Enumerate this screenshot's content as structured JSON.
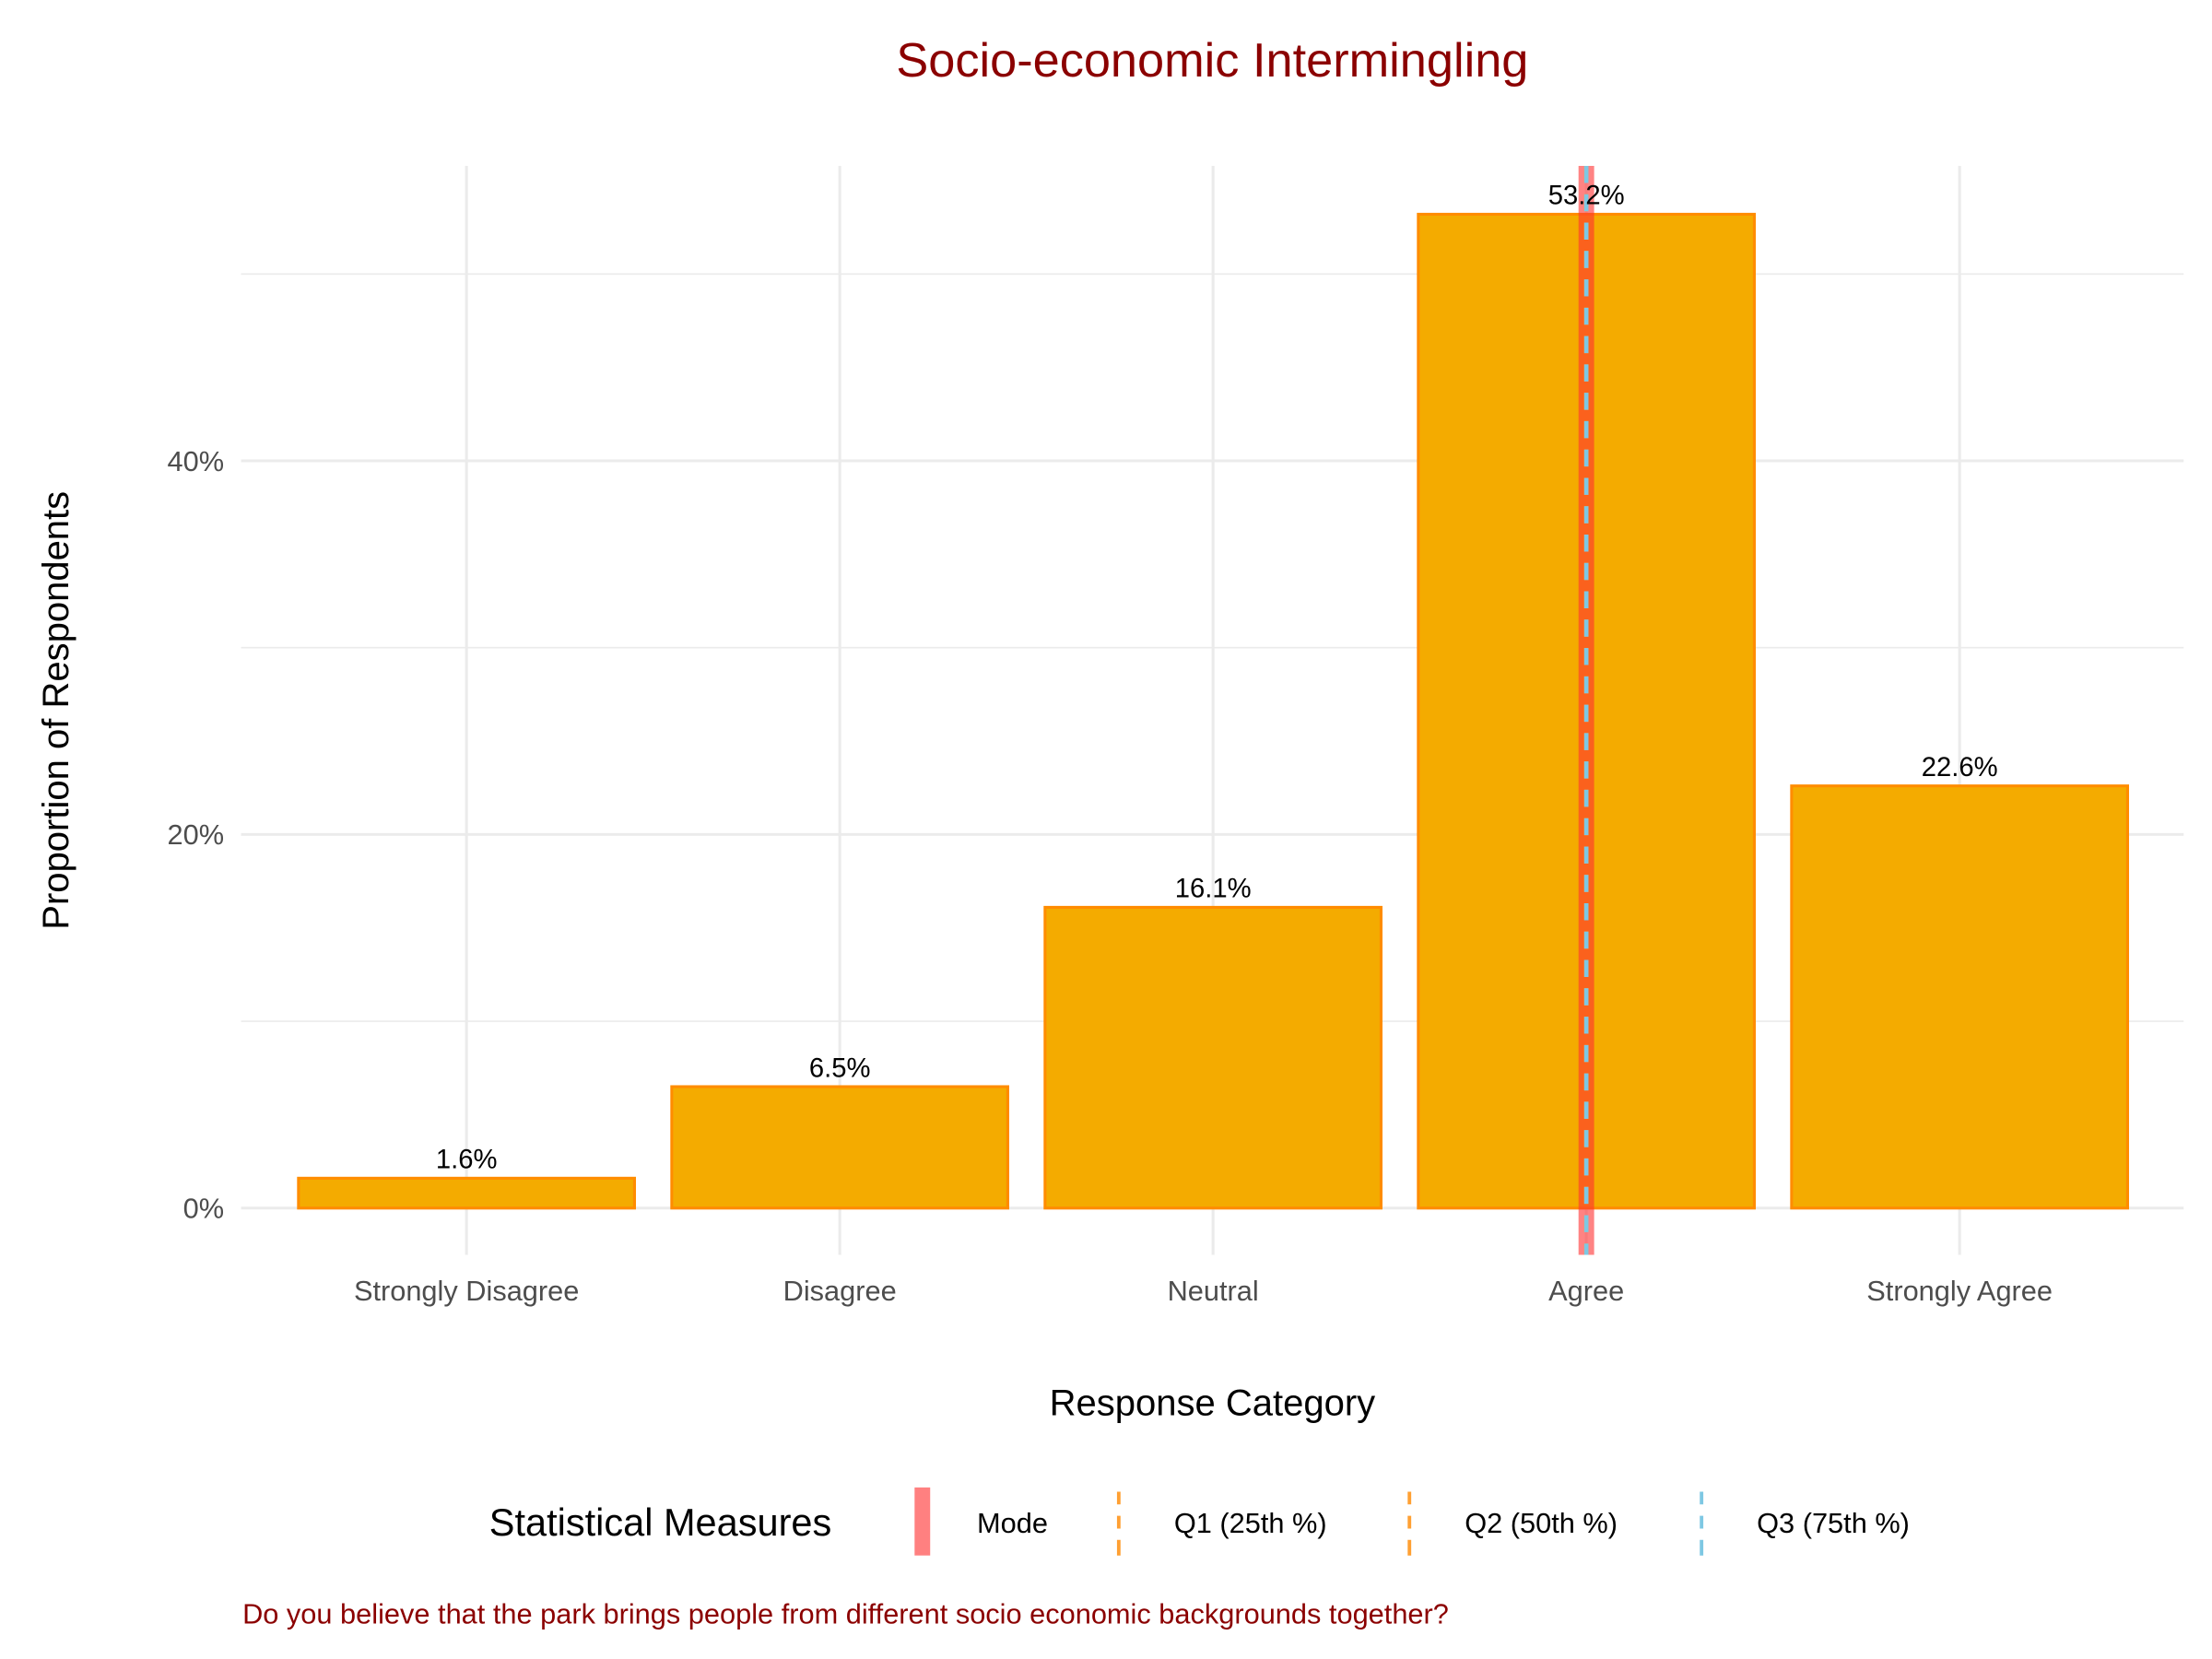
{
  "chart_data": {
    "type": "bar",
    "title": "Socio-economic Intermingling",
    "xlabel": "Response Category",
    "ylabel": "Proportion of Respondents",
    "categories": [
      "Strongly Disagree",
      "Disagree",
      "Neutral",
      "Agree",
      "Strongly Agree"
    ],
    "values": [
      1.6,
      6.5,
      16.1,
      53.2,
      22.6
    ],
    "value_labels": [
      "1.6%",
      "6.5%",
      "16.1%",
      "53.2%",
      "22.6%"
    ],
    "ylim": [
      -2.5,
      55.8
    ],
    "yticks": [
      0,
      20,
      40
    ],
    "ytick_labels": [
      "0%",
      "20%",
      "40%"
    ],
    "grid": true,
    "bar_fill": "#F4AB00",
    "bar_stroke": "#FF8C00",
    "vlines": [
      {
        "name": "Mode",
        "category": "Agree",
        "color": "#FF6B6B",
        "style": "solid"
      },
      {
        "name": "Q1 (25th %)",
        "category": "Agree",
        "color": "#FFA033",
        "style": "dashed"
      },
      {
        "name": "Q2 (50th %)",
        "category": "Agree",
        "color": "#FFA033",
        "style": "dashed"
      },
      {
        "name": "Q3 (75th %)",
        "category": "Agree",
        "color": "#7EC8E3",
        "style": "dashed"
      }
    ],
    "legend": {
      "title": "Statistical Measures",
      "position": "bottom"
    },
    "caption": "Do you believe that the park brings people from different socio economic backgrounds together?"
  }
}
